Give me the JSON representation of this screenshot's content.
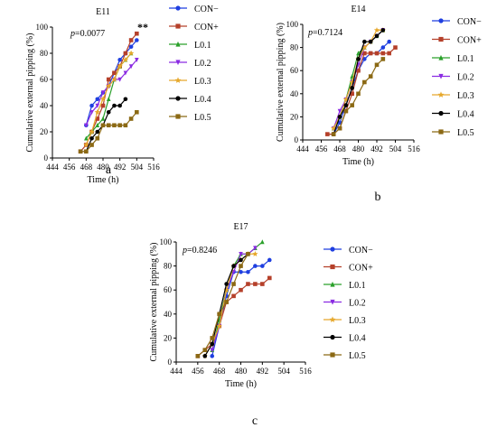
{
  "series_styles": [
    {
      "name": "CON−",
      "color": "#1f3fe0",
      "marker": "circle"
    },
    {
      "name": "CON+",
      "color": "#b5402a",
      "marker": "square"
    },
    {
      "name": "L0.1",
      "color": "#2aa02a",
      "marker": "triangle-up"
    },
    {
      "name": "L0.2",
      "color": "#8a2be2",
      "marker": "triangle-down"
    },
    {
      "name": "L0.3",
      "color": "#e6a82c",
      "marker": "star"
    },
    {
      "name": "L0.4",
      "color": "#000000",
      "marker": "circle"
    },
    {
      "name": "L0.5",
      "color": "#8b6914",
      "marker": "square"
    }
  ],
  "chart_data": [
    {
      "type": "line",
      "title": "E11",
      "panel_label": "a",
      "annotation": "p=0.0077",
      "significance": "**",
      "xlabel": "Time (h)",
      "ylabel": "Cumulative external pipping (%)",
      "xlim": [
        444,
        516
      ],
      "ylim": [
        0,
        100
      ],
      "xticks": [
        444,
        456,
        468,
        480,
        492,
        504,
        516
      ],
      "yticks": [
        0,
        20,
        40,
        60,
        80,
        100
      ],
      "series": [
        {
          "name": "CON−",
          "x": [
            468,
            472,
            476,
            480,
            484,
            488,
            492,
            496,
            500,
            504
          ],
          "y": [
            25,
            40,
            45,
            50,
            55,
            65,
            75,
            80,
            85,
            90
          ]
        },
        {
          "name": "CON+",
          "x": [
            464,
            468,
            472,
            476,
            480,
            484,
            488,
            492,
            496,
            500,
            504
          ],
          "y": [
            5,
            10,
            20,
            30,
            40,
            60,
            65,
            70,
            80,
            90,
            95
          ]
        },
        {
          "name": "L0.1",
          "x": [
            468,
            472,
            476,
            480,
            484,
            488,
            492,
            496,
            500
          ],
          "y": [
            15,
            20,
            25,
            30,
            45,
            60,
            70,
            75,
            80
          ]
        },
        {
          "name": "L0.2",
          "x": [
            468,
            472,
            476,
            480,
            484,
            488,
            492,
            496,
            500,
            504
          ],
          "y": [
            25,
            35,
            40,
            50,
            55,
            60,
            60,
            65,
            70,
            75
          ]
        },
        {
          "name": "L0.3",
          "x": [
            468,
            472,
            476,
            480,
            484,
            488,
            492,
            496,
            500
          ],
          "y": [
            10,
            20,
            35,
            45,
            55,
            60,
            70,
            75,
            80
          ]
        },
        {
          "name": "L0.4",
          "x": [
            468,
            472,
            476,
            480,
            484,
            488,
            492,
            496
          ],
          "y": [
            5,
            15,
            20,
            25,
            35,
            40,
            40,
            45
          ]
        },
        {
          "name": "L0.5",
          "x": [
            464,
            468,
            472,
            476,
            480,
            484,
            488,
            492,
            496,
            500,
            504
          ],
          "y": [
            5,
            5,
            10,
            15,
            25,
            25,
            25,
            25,
            25,
            30,
            35
          ]
        }
      ]
    },
    {
      "type": "line",
      "title": "E14",
      "panel_label": "b",
      "annotation": "p=0.7124",
      "xlabel": "Time (h)",
      "ylabel": "Cumulative external pipping (%)",
      "xlim": [
        444,
        516
      ],
      "ylim": [
        0,
        100
      ],
      "xticks": [
        444,
        456,
        468,
        480,
        492,
        504,
        516
      ],
      "yticks": [
        0,
        20,
        40,
        60,
        80,
        100
      ],
      "series": [
        {
          "name": "CON−",
          "x": [
            464,
            468,
            472,
            476,
            480,
            484,
            488,
            492,
            496,
            500
          ],
          "y": [
            5,
            15,
            30,
            45,
            60,
            70,
            75,
            75,
            80,
            85
          ]
        },
        {
          "name": "CON+",
          "x": [
            460,
            464,
            468,
            472,
            476,
            480,
            484,
            488,
            492,
            496,
            500,
            504
          ],
          "y": [
            5,
            5,
            10,
            25,
            40,
            60,
            75,
            75,
            75,
            75,
            75,
            80
          ]
        },
        {
          "name": "L0.1",
          "x": [
            464,
            468,
            472,
            476,
            480,
            484,
            488,
            492,
            496
          ],
          "y": [
            10,
            20,
            35,
            55,
            75,
            80,
            85,
            90,
            95
          ]
        },
        {
          "name": "L0.2",
          "x": [
            464,
            468,
            472,
            476,
            480,
            484,
            488,
            492,
            496
          ],
          "y": [
            10,
            25,
            35,
            50,
            65,
            80,
            85,
            90,
            95
          ]
        },
        {
          "name": "L0.3",
          "x": [
            464,
            468,
            472,
            476,
            480,
            484,
            488,
            492,
            496
          ],
          "y": [
            10,
            20,
            35,
            50,
            70,
            80,
            85,
            95,
            95
          ]
        },
        {
          "name": "L0.4",
          "x": [
            464,
            468,
            472,
            476,
            480,
            484,
            488,
            492,
            496
          ],
          "y": [
            5,
            20,
            30,
            45,
            70,
            85,
            85,
            90,
            95
          ]
        },
        {
          "name": "L0.5",
          "x": [
            464,
            468,
            472,
            476,
            480,
            484,
            488,
            492,
            496
          ],
          "y": [
            5,
            10,
            25,
            30,
            40,
            50,
            55,
            65,
            70
          ]
        }
      ]
    },
    {
      "type": "line",
      "title": "E17",
      "panel_label": "c",
      "annotation": "p=0.8246",
      "xlabel": "Time (h)",
      "ylabel": "Cumulative external pipping (%)",
      "xlim": [
        444,
        516
      ],
      "ylim": [
        0,
        100
      ],
      "xticks": [
        444,
        456,
        468,
        480,
        492,
        504,
        516
      ],
      "yticks": [
        0,
        20,
        40,
        60,
        80,
        100
      ],
      "series": [
        {
          "name": "CON−",
          "x": [
            464,
            468,
            472,
            476,
            480,
            484,
            488,
            492,
            496
          ],
          "y": [
            5,
            30,
            55,
            75,
            75,
            75,
            80,
            80,
            85
          ]
        },
        {
          "name": "CON+",
          "x": [
            456,
            460,
            464,
            468,
            472,
            476,
            480,
            484,
            488,
            492,
            496
          ],
          "y": [
            5,
            10,
            15,
            30,
            50,
            55,
            60,
            65,
            65,
            65,
            70
          ]
        },
        {
          "name": "L0.1",
          "x": [
            464,
            468,
            472,
            476,
            480,
            484,
            488,
            492
          ],
          "y": [
            10,
            35,
            60,
            80,
            90,
            90,
            95,
            100
          ]
        },
        {
          "name": "L0.2",
          "x": [
            464,
            468,
            472,
            476,
            480,
            484,
            488
          ],
          "y": [
            10,
            30,
            60,
            75,
            90,
            90,
            95
          ]
        },
        {
          "name": "L0.3",
          "x": [
            460,
            464,
            468,
            472,
            476,
            480,
            484,
            488
          ],
          "y": [
            5,
            15,
            30,
            60,
            80,
            85,
            90,
            90
          ]
        },
        {
          "name": "L0.4",
          "x": [
            460,
            464,
            468,
            472,
            476,
            480,
            484
          ],
          "y": [
            5,
            15,
            40,
            65,
            80,
            85,
            90
          ]
        },
        {
          "name": "L0.5",
          "x": [
            456,
            460,
            464,
            468,
            472,
            476,
            480,
            484
          ],
          "y": [
            5,
            10,
            20,
            40,
            50,
            65,
            80,
            90
          ]
        }
      ]
    }
  ]
}
